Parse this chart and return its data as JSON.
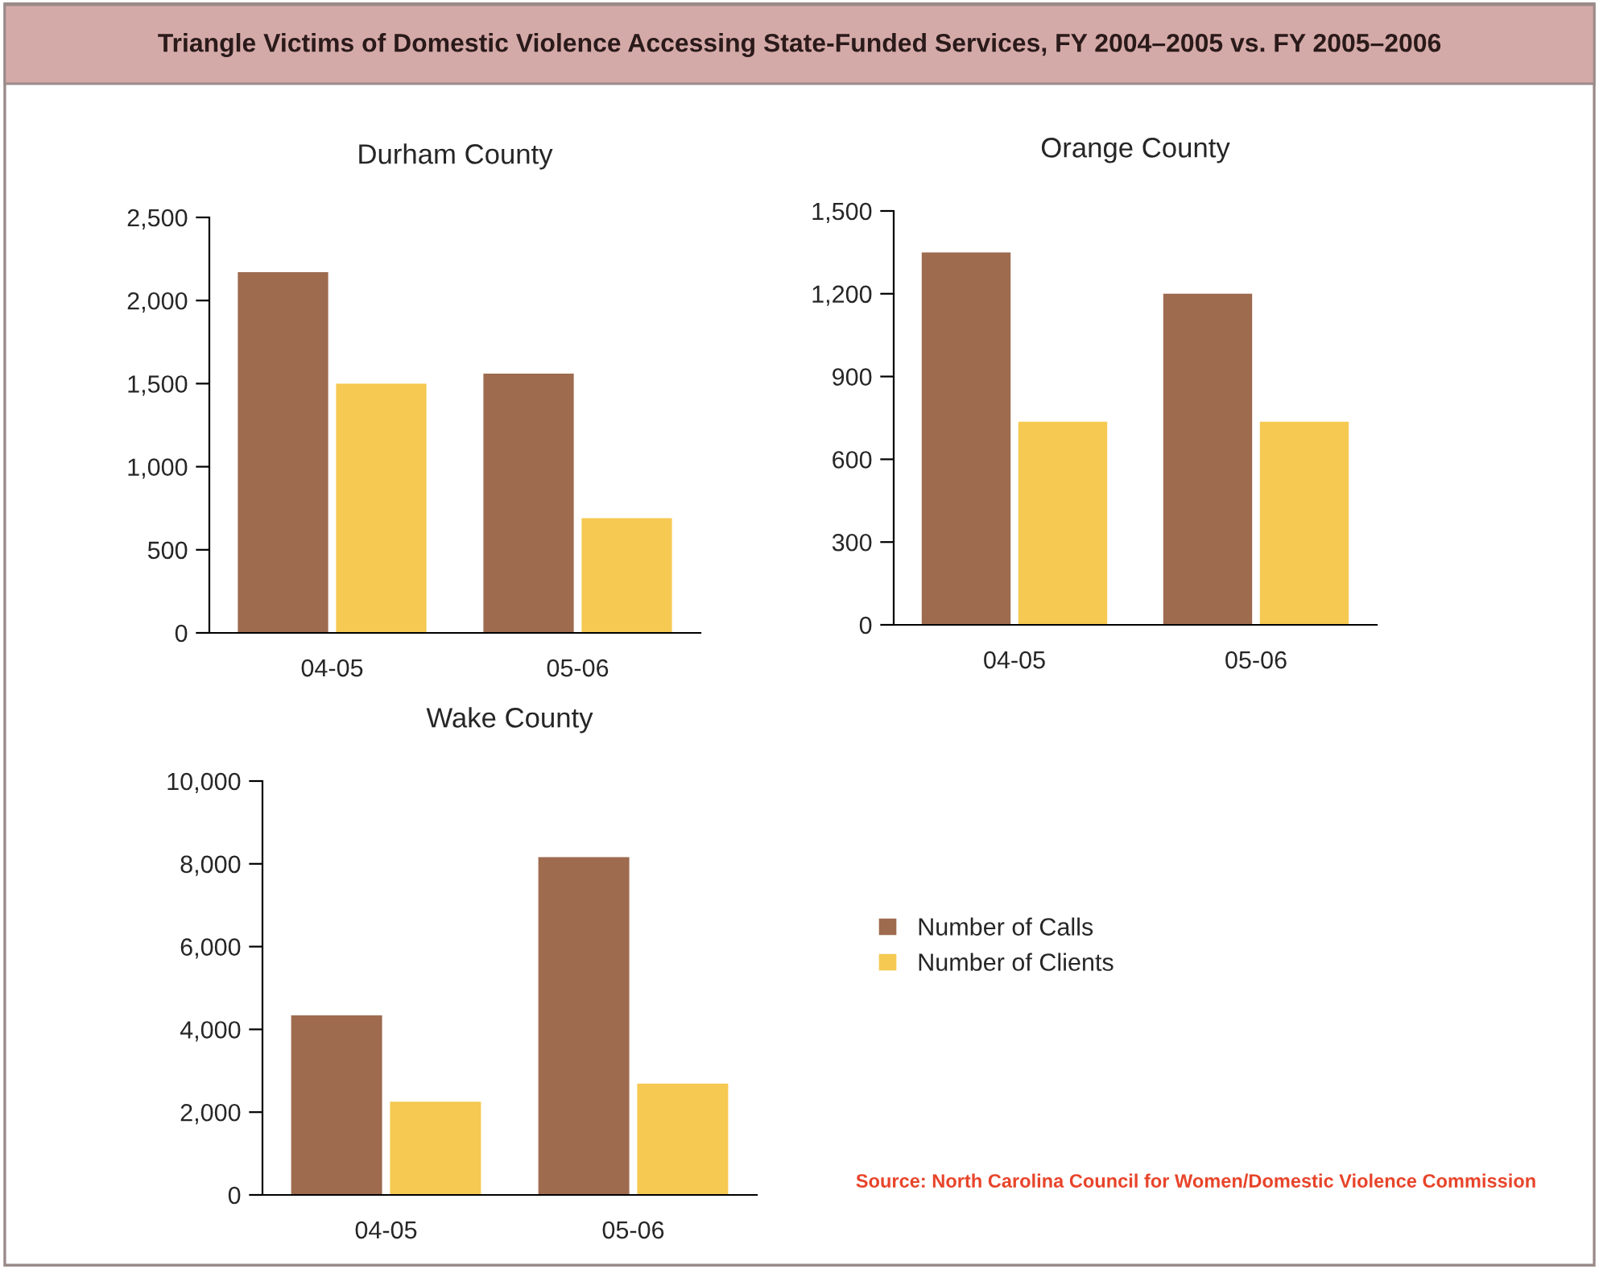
{
  "chart_data": [
    {
      "type": "bar",
      "title": "Durham County",
      "annotations": [
        "Triangle Victims of Domestic Violence Accessing State-Funded Services, FY 2004–2005 vs. FY 2005–2006"
      ],
      "categories": [
        "04-05",
        "05-06"
      ],
      "series": [
        {
          "color": "#9e6b4f",
          "values": [
            2170,
            1560
          ]
        },
        {
          "color": "#f5c952",
          "values": [
            1500,
            690
          ]
        }
      ],
      "ylim": [
        0,
        2500
      ],
      "yticks": [
        0,
        500,
        {
          "value": 1000,
          "label": "1,000"
        },
        {
          "value": 1500,
          "label": "1,500"
        },
        {
          "value": 2000,
          "label": "2,000"
        },
        {
          "value": 2500,
          "label": "2,500"
        }
      ],
      "grid": false
    },
    {
      "type": "bar",
      "title": "Orange County",
      "categories": [
        "04-05",
        "05-06"
      ],
      "series": [
        {
          "color": "#9e6b4f",
          "values": [
            1350,
            1200
          ]
        },
        {
          "color": "#f5c952",
          "values": [
            736,
            736
          ]
        }
      ],
      "ylim": [
        0,
        1500
      ],
      "yticks": [
        0,
        300,
        600,
        900,
        {
          "value": 1200,
          "label": "1,200"
        },
        {
          "value": 1500,
          "label": "1,500"
        }
      ],
      "grid": false
    },
    {
      "type": "bar",
      "title": "Wake County",
      "annotations": [
        "Source: North Carolina Council for Women/Domestic Violence Commission"
      ],
      "categories": [
        "04-05",
        "05-06"
      ],
      "series": [
        {
          "name": "Number of Calls",
          "color": "#9e6b4f",
          "values": [
            4340,
            8160
          ]
        },
        {
          "name": "Number of Clients",
          "color": "#f5c952",
          "values": [
            2250,
            2690
          ]
        }
      ],
      "ylim": [
        0,
        10000
      ],
      "yticks": [
        0,
        {
          "value": 2000,
          "label": "2,000"
        },
        {
          "value": 4000,
          "label": "4,000"
        },
        {
          "value": 6000,
          "label": "6,000"
        },
        {
          "value": 8000,
          "label": "8,000"
        },
        {
          "value": 10000,
          "label": "10,000"
        }
      ],
      "grid": false,
      "legend": "right"
    }
  ]
}
